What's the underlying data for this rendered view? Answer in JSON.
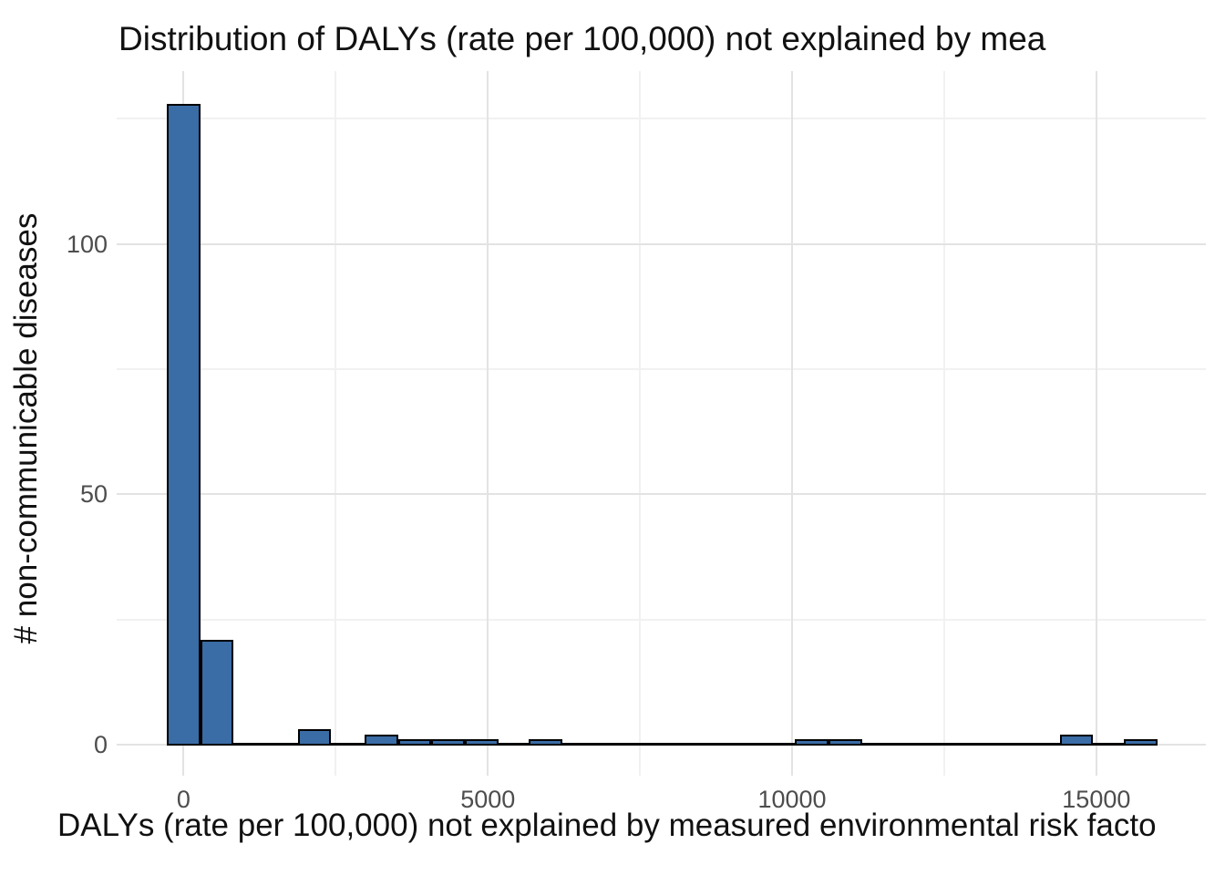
{
  "title": "Distribution of DALYs (rate per 100,000) not explained by mea",
  "axis_titles": {
    "x": "DALYs (rate per 100,000) not explained by measured environmental risk facto",
    "y": "# non-communicable diseases"
  },
  "chart_data": {
    "type": "bar",
    "subtype": "histogram",
    "title": "Distribution of DALYs (rate per 100,000) not explained by mea",
    "xlabel": "DALYs (rate per 100,000) not explained by measured environmental risk facto",
    "ylabel": "# non-communicable diseases",
    "legend_position": "none",
    "grid": "on",
    "xlim": [
      -1100,
      16800
    ],
    "ylim": [
      -6.2,
      134.5
    ],
    "x_major_ticks": [
      0,
      5000,
      10000,
      15000
    ],
    "x_major_tick_labels": [
      "0",
      "5000",
      "10000",
      "15000"
    ],
    "x_minor_ticks": [
      2500,
      7500,
      12500
    ],
    "y_major_ticks": [
      0,
      50,
      100
    ],
    "y_major_tick_labels": [
      "0",
      "50",
      "100"
    ],
    "y_minor_ticks": [
      25,
      75,
      125
    ],
    "binwidth": 550,
    "bins": [
      {
        "x0": -275,
        "x1": 275,
        "count": 128
      },
      {
        "x0": 275,
        "x1": 825,
        "count": 21
      },
      {
        "x0": 1875,
        "x1": 2425,
        "count": 3
      },
      {
        "x0": 2975,
        "x1": 3525,
        "count": 2
      },
      {
        "x0": 3525,
        "x1": 4075,
        "count": 1
      },
      {
        "x0": 4075,
        "x1": 4625,
        "count": 1
      },
      {
        "x0": 4625,
        "x1": 5175,
        "count": 1
      },
      {
        "x0": 5675,
        "x1": 6225,
        "count": 1
      },
      {
        "x0": 10050,
        "x1": 10600,
        "count": 1
      },
      {
        "x0": 10600,
        "x1": 11150,
        "count": 1
      },
      {
        "x0": 14400,
        "x1": 14950,
        "count": 2
      },
      {
        "x0": 15450,
        "x1": 16000,
        "count": 1
      }
    ],
    "zero_line_extent": [
      -275,
      16000
    ],
    "colors": {
      "bar_fill": "#3A6CA6",
      "bar_border": "#000000",
      "grid_major": "#E3E3E3",
      "grid_minor": "#F1F1F1",
      "tick_text": "#4D4D4D",
      "title_text": "#111111",
      "background": "#FFFFFF"
    }
  }
}
